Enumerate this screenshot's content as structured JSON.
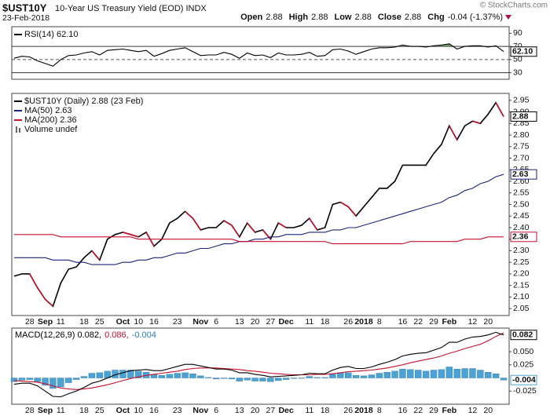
{
  "header": {
    "symbol": "$UST10Y",
    "name": "10-Year US Treasury Yield (EOD) INDX",
    "date": "23-Feb-2018",
    "quote": [
      {
        "label": "Open",
        "value": "2.88"
      },
      {
        "label": "High",
        "value": "2.88"
      },
      {
        "label": "Low",
        "value": "2.88"
      },
      {
        "label": "Close",
        "value": "2.88"
      },
      {
        "label": "Chg",
        "value": "-0.04 (-1.37%)"
      }
    ],
    "watermark": "© StockCharts.com"
  },
  "chart_data": [
    {
      "type": "line",
      "ylim": [
        20,
        100
      ],
      "yticks": [
        90,
        70,
        50,
        30
      ],
      "solid_lines": [
        70,
        30
      ],
      "dashed_lines": [
        50
      ],
      "fill_above": 70,
      "fill_color": "#6b9a62",
      "series": [
        {
          "name": "RSI(14) 62.10",
          "color": "#000000",
          "badge": "62.10",
          "values": [
            52,
            55,
            54,
            48,
            44,
            40,
            50,
            56,
            57,
            60,
            62,
            57,
            64,
            65,
            66,
            64,
            62,
            64,
            55,
            59,
            64,
            66,
            68,
            62,
            56,
            57,
            57,
            61,
            58,
            52,
            60,
            56,
            57,
            53,
            60,
            57,
            57,
            58,
            61,
            55,
            56,
            65,
            66,
            63,
            58,
            62,
            66,
            68,
            68,
            69,
            72,
            70,
            70,
            69,
            71,
            72,
            74,
            66,
            70,
            71,
            71,
            69,
            71,
            62.1
          ]
        }
      ]
    },
    {
      "type": "line",
      "ylim": [
        2.02,
        2.98
      ],
      "yticks": [
        2.95,
        {
          "value": 2.9,
          "label": "2.90"
        },
        2.85,
        {
          "value": 2.8,
          "label": "2.80"
        },
        2.75,
        {
          "value": 2.7,
          "label": "2.70"
        },
        2.65,
        {
          "value": 2.6,
          "label": "2.60"
        },
        2.55,
        {
          "value": 2.5,
          "label": "2.50"
        },
        2.45,
        {
          "value": 2.4,
          "label": "2.40"
        },
        2.35,
        {
          "value": 2.3,
          "label": "2.30"
        },
        2.25,
        {
          "value": 2.2,
          "label": "2.20"
        },
        2.15,
        {
          "value": 2.1,
          "label": "2.10"
        },
        2.05
      ],
      "categories": [
        null,
        null,
        "28",
        null,
        "Sep",
        null,
        "11",
        null,
        null,
        "18",
        null,
        "25",
        null,
        null,
        "Oct",
        null,
        "10",
        null,
        "16",
        null,
        null,
        "23",
        null,
        null,
        "Nov",
        null,
        "6",
        null,
        null,
        "13",
        null,
        "20",
        null,
        "27",
        null,
        "Dec",
        null,
        null,
        "11",
        null,
        "18",
        null,
        null,
        "26",
        null,
        "2018",
        null,
        "8",
        null,
        null,
        "16",
        null,
        "22",
        null,
        "29",
        null,
        "Feb",
        null,
        null,
        "12",
        null,
        "20",
        null,
        null
      ],
      "legend_extra": "Volume undef",
      "series": [
        {
          "name": "$UST10Y (Daily) 2.88 (23 Feb)",
          "color": "#000000",
          "down_color": "#c8102e",
          "badge": "2.88",
          "values": [
            2.19,
            2.2,
            2.2,
            2.14,
            2.09,
            2.06,
            2.16,
            2.22,
            2.23,
            2.27,
            2.3,
            2.26,
            2.35,
            2.37,
            2.38,
            2.37,
            2.36,
            2.38,
            2.32,
            2.35,
            2.42,
            2.44,
            2.47,
            2.44,
            2.39,
            2.4,
            2.4,
            2.43,
            2.41,
            2.36,
            2.42,
            2.38,
            2.39,
            2.35,
            2.42,
            2.4,
            2.4,
            2.41,
            2.44,
            2.39,
            2.4,
            2.5,
            2.51,
            2.49,
            2.45,
            2.49,
            2.53,
            2.57,
            2.57,
            2.6,
            2.67,
            2.67,
            2.67,
            2.67,
            2.72,
            2.76,
            2.84,
            2.78,
            2.84,
            2.86,
            2.85,
            2.89,
            2.94,
            2.88
          ]
        },
        {
          "name": "MA(50) 2.63",
          "color": "#1a237e",
          "badge": "2.63",
          "values": [
            2.27,
            2.27,
            2.27,
            2.27,
            2.27,
            2.26,
            2.26,
            2.26,
            2.25,
            2.25,
            2.24,
            2.24,
            2.24,
            2.24,
            2.25,
            2.25,
            2.26,
            2.26,
            2.27,
            2.27,
            2.28,
            2.29,
            2.29,
            2.3,
            2.31,
            2.31,
            2.32,
            2.33,
            2.33,
            2.34,
            2.34,
            2.35,
            2.35,
            2.36,
            2.36,
            2.37,
            2.37,
            2.37,
            2.38,
            2.38,
            2.38,
            2.39,
            2.39,
            2.4,
            2.4,
            2.41,
            2.42,
            2.43,
            2.44,
            2.45,
            2.46,
            2.47,
            2.48,
            2.49,
            2.5,
            2.51,
            2.53,
            2.54,
            2.56,
            2.57,
            2.59,
            2.6,
            2.62,
            2.63
          ]
        },
        {
          "name": "MA(200) 2.36",
          "color": "#c8102e",
          "badge": "2.36",
          "values": [
            2.37,
            2.37,
            2.37,
            2.37,
            2.37,
            2.37,
            2.36,
            2.36,
            2.36,
            2.36,
            2.36,
            2.36,
            2.36,
            2.36,
            2.36,
            2.36,
            2.35,
            2.35,
            2.35,
            2.35,
            2.35,
            2.35,
            2.35,
            2.35,
            2.35,
            2.35,
            2.35,
            2.35,
            2.35,
            2.34,
            2.34,
            2.34,
            2.34,
            2.34,
            2.34,
            2.34,
            2.34,
            2.34,
            2.34,
            2.34,
            2.34,
            2.33,
            2.33,
            2.33,
            2.33,
            2.33,
            2.33,
            2.33,
            2.33,
            2.33,
            2.33,
            2.34,
            2.34,
            2.34,
            2.34,
            2.34,
            2.34,
            2.34,
            2.35,
            2.35,
            2.35,
            2.36,
            2.36,
            2.36
          ]
        }
      ]
    },
    {
      "type": "combo",
      "ylim": [
        -0.05,
        0.095
      ],
      "yticks": [
        {
          "value": 0.05,
          "label": "0.050"
        },
        {
          "value": 0.025,
          "label": "0.025"
        },
        {
          "value": -0.025,
          "label": "-0.025"
        }
      ],
      "categories": [
        null,
        null,
        "28",
        null,
        "Sep",
        null,
        "11",
        null,
        null,
        "18",
        null,
        "25",
        null,
        null,
        "Oct",
        null,
        "10",
        null,
        "16",
        null,
        null,
        "23",
        null,
        null,
        "Nov",
        null,
        "6",
        null,
        null,
        "13",
        null,
        "20",
        null,
        "27",
        null,
        "Dec",
        null,
        null,
        "11",
        null,
        "18",
        null,
        null,
        "26",
        null,
        "2018",
        null,
        "8",
        null,
        null,
        "16",
        null,
        "22",
        null,
        "29",
        null,
        "Feb",
        null,
        null,
        "12",
        null,
        "20",
        null,
        null
      ],
      "legend": [
        {
          "text": "MACD(12,26,9) 0.082,",
          "color": "#000000"
        },
        {
          "text": "0.086,",
          "color": "#c8102e"
        },
        {
          "text": "-0.004",
          "color": "#2a7fba"
        }
      ],
      "series": [
        {
          "kind": "bar",
          "color": "#4aa3d8",
          "badge": "-0.004",
          "values": [
            -0.007,
            -0.004,
            -0.003,
            -0.007,
            -0.014,
            -0.02,
            -0.017,
            -0.009,
            -0.003,
            0.003,
            0.009,
            0.01,
            0.013,
            0.015,
            0.015,
            0.015,
            0.013,
            0.011,
            0.007,
            0.005,
            0.007,
            0.009,
            0.01,
            0.008,
            0.004,
            0.001,
            -0.002,
            -0.001,
            -0.002,
            -0.006,
            -0.004,
            -0.006,
            -0.006,
            -0.007,
            -0.005,
            -0.003,
            -0.001,
            0.0,
            0.003,
            0.001,
            0.001,
            0.007,
            0.01,
            0.01,
            0.005,
            0.004,
            0.006,
            0.009,
            0.011,
            0.013,
            0.017,
            0.016,
            0.015,
            0.013,
            0.015,
            0.016,
            0.021,
            0.017,
            0.018,
            0.018,
            0.015,
            0.011,
            0.008,
            -0.004
          ]
        },
        {
          "kind": "line",
          "color": "#c8102e",
          "values": [
            -0.005,
            -0.006,
            -0.007,
            -0.008,
            -0.011,
            -0.015,
            -0.019,
            -0.021,
            -0.022,
            -0.021,
            -0.019,
            -0.016,
            -0.013,
            -0.009,
            -0.005,
            -0.001,
            0.002,
            0.005,
            0.007,
            0.009,
            0.011,
            0.013,
            0.016,
            0.018,
            0.019,
            0.019,
            0.019,
            0.018,
            0.017,
            0.016,
            0.014,
            0.013,
            0.011,
            0.009,
            0.008,
            0.007,
            0.006,
            0.006,
            0.006,
            0.007,
            0.007,
            0.008,
            0.01,
            0.012,
            0.013,
            0.014,
            0.015,
            0.017,
            0.019,
            0.022,
            0.025,
            0.029,
            0.032,
            0.035,
            0.038,
            0.042,
            0.047,
            0.051,
            0.056,
            0.06,
            0.064,
            0.071,
            0.079,
            0.086
          ]
        },
        {
          "kind": "line",
          "color": "#000000",
          "badge": "0.082",
          "values": [
            -0.012,
            -0.01,
            -0.01,
            -0.015,
            -0.025,
            -0.035,
            -0.036,
            -0.03,
            -0.025,
            -0.018,
            -0.01,
            -0.006,
            0.0,
            0.006,
            0.01,
            0.014,
            0.015,
            0.016,
            0.014,
            0.014,
            0.018,
            0.022,
            0.026,
            0.026,
            0.023,
            0.02,
            0.017,
            0.017,
            0.015,
            0.01,
            0.01,
            0.007,
            0.005,
            0.002,
            0.003,
            0.004,
            0.005,
            0.006,
            0.009,
            0.008,
            0.008,
            0.015,
            0.02,
            0.022,
            0.018,
            0.018,
            0.021,
            0.026,
            0.03,
            0.035,
            0.042,
            0.045,
            0.047,
            0.048,
            0.053,
            0.058,
            0.068,
            0.068,
            0.074,
            0.078,
            0.079,
            0.082,
            0.087,
            0.082
          ]
        }
      ]
    }
  ]
}
